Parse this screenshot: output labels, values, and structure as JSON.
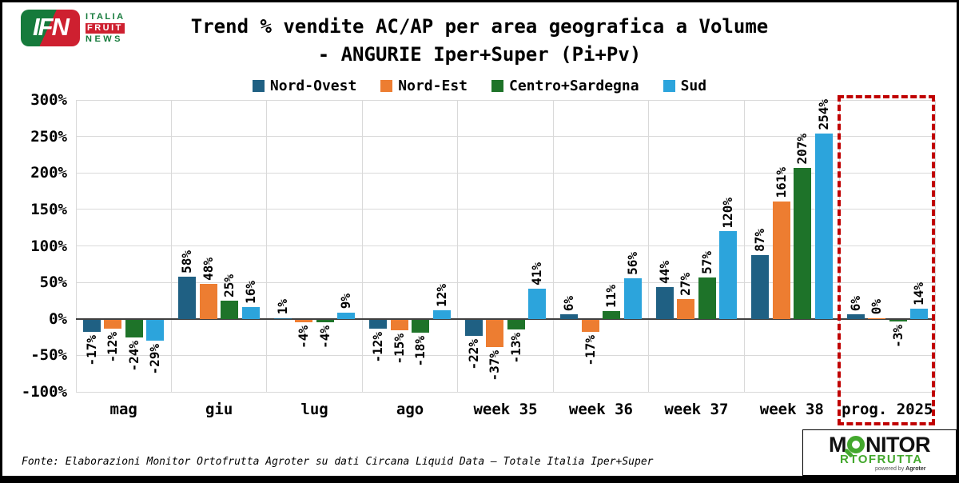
{
  "header": {
    "logo": {
      "acronym": "IFN",
      "italia": "ITALIA",
      "fruit": "FRUIT",
      "news": "NEWS"
    },
    "title_line1": "Trend % vendite AC/AP per area geografica a Volume",
    "title_line2": "- ANGURIE Iper+Super (Pi+Pv)"
  },
  "chart_data": {
    "type": "bar",
    "title": "Trend % vendite AC/AP per area geografica a Volume - ANGURIE Iper+Super (Pi+Pv)",
    "categories": [
      "mag",
      "giu",
      "lug",
      "ago",
      "week 35",
      "week 36",
      "week 37",
      "week 38",
      "prog. 2025"
    ],
    "series": [
      {
        "name": "Nord-Ovest",
        "color": "#1F6083",
        "values": [
          -17,
          58,
          1,
          -12,
          -22,
          6,
          44,
          87,
          6
        ]
      },
      {
        "name": "Nord-Est",
        "color": "#ED7D31",
        "values": [
          -12,
          48,
          -4,
          -15,
          -37,
          -17,
          27,
          161,
          0
        ]
      },
      {
        "name": "Centro+Sardegna",
        "color": "#1E7329",
        "values": [
          -24,
          25,
          -4,
          -18,
          -13,
          11,
          57,
          207,
          -3
        ]
      },
      {
        "name": "Sud",
        "color": "#2CA4DC",
        "values": [
          -29,
          16,
          9,
          12,
          41,
          56,
          120,
          254,
          14
        ]
      }
    ],
    "ylim": [
      -100,
      300
    ],
    "ytick_step": 50,
    "yticks": [
      "300%",
      "250%",
      "200%",
      "150%",
      "100%",
      "50%",
      "0%",
      "-50%",
      "-100%"
    ],
    "grid": true,
    "legend_position": "top-center",
    "data_label_format": "{value}%",
    "highlight": {
      "category": "prog. 2025",
      "shape": "dashed-rectangle",
      "color": "#C00000"
    }
  },
  "footer": {
    "source": "Fonte: Elaborazioni Monitor Ortofrutta Agroter su dati Circana Liquid Data – Totale Italia Iper+Super",
    "logo": {
      "m": "M",
      "nitor": "NITOR",
      "rtofrutta": "RTOFRUTTA",
      "powered_by": "powered by",
      "agroter": "Agroter"
    }
  }
}
